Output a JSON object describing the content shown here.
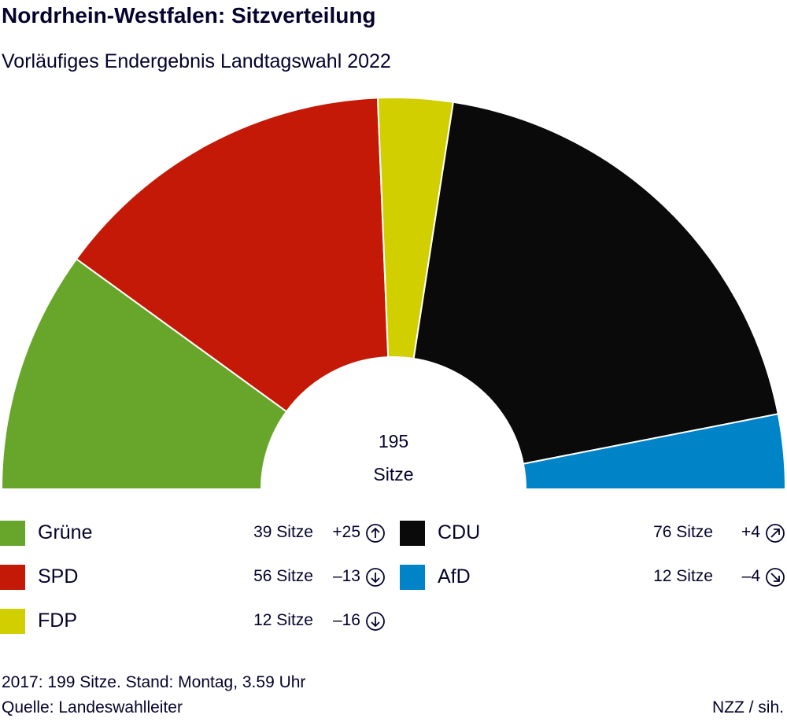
{
  "header": {
    "title": "Nordrhein-Westfalen: Sitzverteilung",
    "subtitle": "Vorläufiges Endergebnis Landtagswahl 2022"
  },
  "chart_data": {
    "type": "pie",
    "variant": "semicircle-parliament",
    "title": "Nordrhein-Westfalen: Sitzverteilung",
    "subtitle": "Vorläufiges Endergebnis Landtagswahl 2022",
    "total_value": "195",
    "total_label": "Sitze",
    "categories": [
      "Grüne",
      "SPD",
      "FDP",
      "CDU",
      "AfD"
    ],
    "values": [
      39,
      56,
      12,
      76,
      12
    ],
    "colors": [
      "#67a62a",
      "#c31906",
      "#d1cf00",
      "#0a0a0a",
      "#0084c8"
    ],
    "seat_labels": [
      "39 Sitze",
      "56 Sitze",
      "12 Sitze",
      "76 Sitze",
      "12 Sitze"
    ],
    "changes": [
      "+25",
      "–13",
      "–16",
      "+4",
      "–4"
    ],
    "change_icons": [
      "arrow-up-icon",
      "arrow-down-icon",
      "arrow-down-icon",
      "arrow-up-right-icon",
      "arrow-down-right-icon"
    ]
  },
  "footer": {
    "note": "2017: 199 Sitze. Stand: Montag, 3.59 Uhr",
    "source": "Quelle: Landeswahlleiter",
    "credit": "NZZ / sih."
  }
}
